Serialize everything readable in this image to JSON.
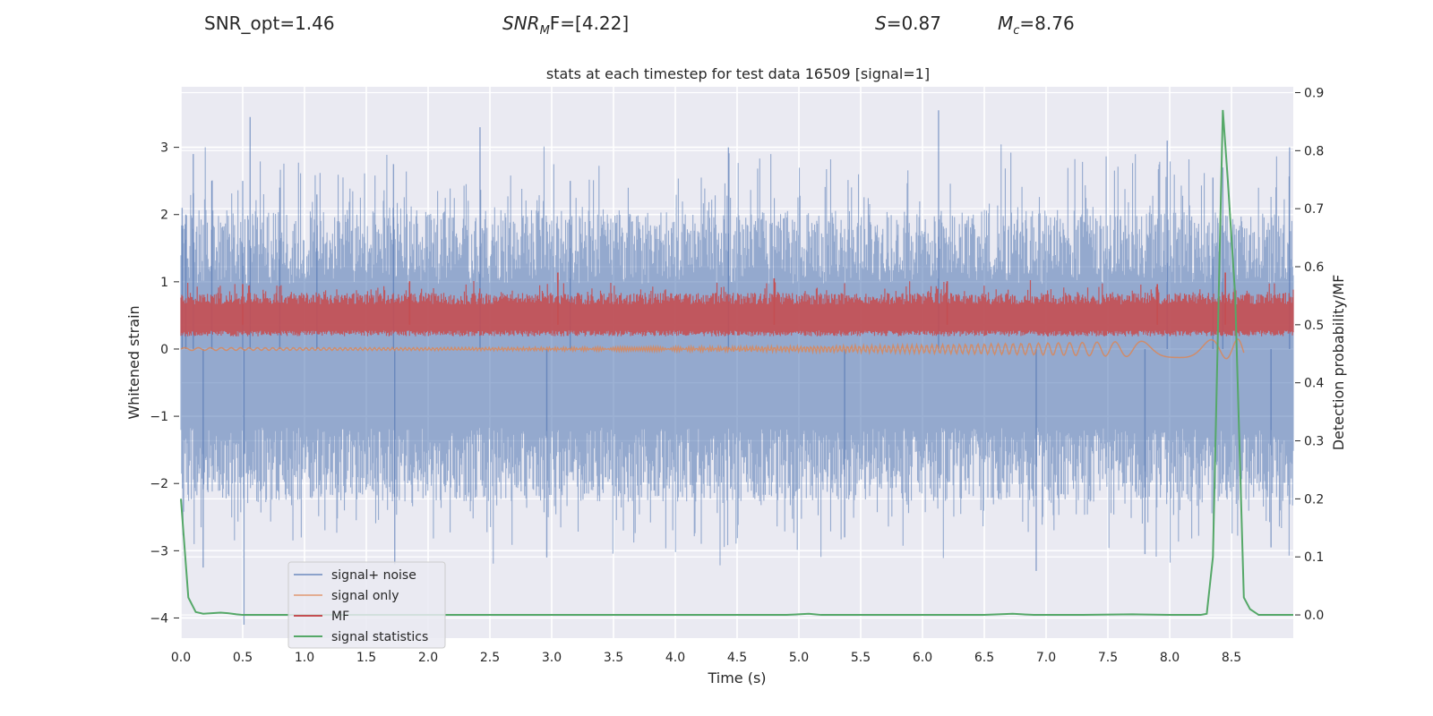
{
  "header": {
    "snr_opt": "SNR_opt=1.46",
    "snr_mf_main": "SNR",
    "snr_mf_sub": "M",
    "snr_mf_tail": "F=[4.22]",
    "s_main": "S",
    "s_tail": "=0.87",
    "mc_main": "M",
    "mc_sub": "c",
    "mc_tail": "=8.76"
  },
  "colors": {
    "background": "#eaeaf2",
    "grid": "#ffffff",
    "noise": "#4c72b0",
    "signal": "#dd8452",
    "mf": "#c44e52",
    "stat": "#55a868"
  },
  "chart_data": {
    "type": "line",
    "title": "stats at each timestep for test data 16509 [signal=1]",
    "xlabel": "Time (s)",
    "ylabel": "Whitened strain",
    "ylabel_right": "Detection probability/MF",
    "xlim": [
      0.0,
      9.0
    ],
    "ylim": [
      -4.3,
      3.9
    ],
    "ylim_right": [
      -0.04,
      0.91
    ],
    "xticks": [
      0.0,
      0.5,
      1.0,
      1.5,
      2.0,
      2.5,
      3.0,
      3.5,
      4.0,
      4.5,
      5.0,
      5.5,
      6.0,
      6.5,
      7.0,
      7.5,
      8.0,
      8.5
    ],
    "xtick_labels": [
      "0.0",
      "0.5",
      "1.0",
      "1.5",
      "2.0",
      "2.5",
      "3.0",
      "3.5",
      "4.0",
      "4.5",
      "5.0",
      "5.5",
      "6.0",
      "6.5",
      "7.0",
      "7.5",
      "8.0",
      "8.5"
    ],
    "yticks": [
      3,
      2,
      1,
      0,
      -1,
      -2,
      -3,
      -4
    ],
    "ytick_labels": [
      "3",
      "2",
      "1",
      "0",
      "−1",
      "−2",
      "−3",
      "−4"
    ],
    "yticks_right": [
      0.9,
      0.8,
      0.7,
      0.6,
      0.5,
      0.4,
      0.3,
      0.2,
      0.1,
      0.0
    ],
    "ytick_labels_right": [
      "0.9",
      "0.8",
      "0.7",
      "0.6",
      "0.5",
      "0.4",
      "0.3",
      "0.2",
      "0.1",
      "0.0"
    ],
    "legend": {
      "position": "lower-left",
      "entries": [
        {
          "label": "signal+ noise",
          "color": "#4c72b0"
        },
        {
          "label": "signal only",
          "color": "#dd8452"
        },
        {
          "label": "MF",
          "color": "#c44e52"
        },
        {
          "label": "signal statistics",
          "color": "#55a868"
        }
      ]
    },
    "series": [
      {
        "name": "signal+ noise",
        "axis": "left",
        "kind": "noise-band",
        "typical_range": [
          -1.5,
          1.3
        ],
        "t_range": [
          0.0,
          9.0
        ],
        "spikes": [
          {
            "t": 0.01,
            "v": 2.1
          },
          {
            "t": 0.04,
            "v": 2.0
          },
          {
            "t": 0.1,
            "v": 2.9
          },
          {
            "t": 0.18,
            "v": -3.25
          },
          {
            "t": 0.25,
            "v": 2.5
          },
          {
            "t": 0.5,
            "v": 2.5
          },
          {
            "t": 0.51,
            "v": -4.1
          },
          {
            "t": 0.56,
            "v": 3.45
          },
          {
            "t": 0.8,
            "v": 2.4
          },
          {
            "t": 1.1,
            "v": 2.3
          },
          {
            "t": 1.72,
            "v": 2.75
          },
          {
            "t": 1.73,
            "v": -3.2
          },
          {
            "t": 2.42,
            "v": 3.3
          },
          {
            "t": 2.96,
            "v": -3.1
          },
          {
            "t": 3.15,
            "v": 2.5
          },
          {
            "t": 4.43,
            "v": 3.0
          },
          {
            "t": 5.37,
            "v": -2.8
          },
          {
            "t": 6.13,
            "v": 3.55
          },
          {
            "t": 6.92,
            "v": -3.3
          },
          {
            "t": 7.8,
            "v": -3.05
          },
          {
            "t": 7.98,
            "v": 3.1
          },
          {
            "t": 8.35,
            "v": 2.55
          },
          {
            "t": 8.43,
            "v": 2.7
          },
          {
            "t": 8.82,
            "v": -2.95
          },
          {
            "t": 8.97,
            "v": 3.0
          }
        ]
      },
      {
        "name": "signal only",
        "axis": "left",
        "kind": "chirp",
        "t_range": [
          0.0,
          8.6
        ],
        "amplitude_start": 0.02,
        "amplitude_end": 0.15
      },
      {
        "name": "MF",
        "axis": "right",
        "kind": "noise-band",
        "typical_range": [
          0.485,
          0.545
        ],
        "t_range": [
          0.0,
          9.0
        ],
        "spikes": [
          {
            "t": 0.5,
            "v": 0.57
          },
          {
            "t": 1.85,
            "v": 0.575
          },
          {
            "t": 3.05,
            "v": 0.59
          },
          {
            "t": 4.8,
            "v": 0.58
          },
          {
            "t": 6.2,
            "v": 0.575
          },
          {
            "t": 7.9,
            "v": 0.57
          },
          {
            "t": 8.45,
            "v": 0.59
          }
        ]
      },
      {
        "name": "signal statistics",
        "axis": "right",
        "kind": "line",
        "x": [
          0.0,
          0.06,
          0.12,
          0.18,
          0.25,
          0.32,
          0.38,
          0.45,
          0.5,
          1.0,
          2.0,
          3.0,
          4.0,
          4.9,
          5.08,
          5.18,
          6.0,
          6.5,
          6.73,
          6.9,
          7.3,
          7.7,
          8.0,
          8.25,
          8.3,
          8.35,
          8.43,
          8.47,
          8.53,
          8.6,
          8.65,
          8.72,
          8.8,
          9.0
        ],
        "y": [
          0.2,
          0.03,
          0.005,
          0.002,
          0.003,
          0.004,
          0.003,
          0.001,
          0.0,
          0.0,
          0.0,
          0.0,
          0.0,
          0.0,
          0.002,
          0.0,
          0.0,
          0.0,
          0.002,
          0.0,
          0.0,
          0.001,
          0.0,
          0.0,
          0.002,
          0.1,
          0.87,
          0.75,
          0.55,
          0.03,
          0.01,
          0.0,
          0.0,
          0.0
        ]
      }
    ]
  }
}
